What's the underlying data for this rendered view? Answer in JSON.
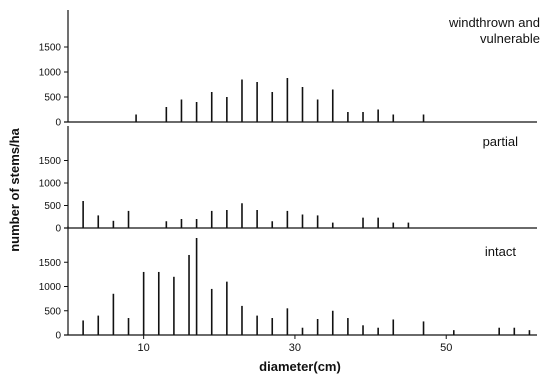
{
  "chart_data": {
    "type": "bar",
    "ylabel": "number of stems/ha",
    "xlabel": "diameter(cm)",
    "xlim": [
      0,
      62
    ],
    "xticks": [
      10,
      30,
      50
    ],
    "yticks": [
      0,
      500,
      1000,
      1500
    ],
    "grid": false,
    "panels": [
      {
        "title_lines": [
          "windthrown and",
          "vulnerable"
        ],
        "ylim": [
          0,
          2000
        ],
        "series": [
          {
            "x": [
              9,
              13,
              15,
              17,
              19,
              21,
              23,
              25,
              27,
              29,
              31,
              33,
              35,
              37,
              39,
              41,
              43,
              47
            ],
            "values": [
              150,
              300,
              450,
              400,
              600,
              500,
              850,
              800,
              600,
              880,
              700,
              450,
              650,
              200,
              200,
              250,
              150,
              150
            ]
          }
        ]
      },
      {
        "title_lines": [
          "partial"
        ],
        "ylim": [
          0,
          2000
        ],
        "series": [
          {
            "x": [
              2,
              4,
              6,
              8,
              13,
              15,
              17,
              19,
              21,
              23,
              25,
              27,
              29,
              31,
              33,
              35,
              39,
              41,
              43,
              45
            ],
            "values": [
              600,
              280,
              160,
              380,
              150,
              200,
              200,
              380,
              400,
              550,
              400,
              150,
              380,
              300,
              280,
              120,
              230,
              230,
              120,
              120
            ]
          }
        ]
      },
      {
        "title_lines": [
          "intact"
        ],
        "ylim": [
          0,
          2000
        ],
        "series": [
          {
            "x": [
              2,
              4,
              6,
              8,
              10,
              12,
              14,
              16,
              17,
              19,
              21,
              23,
              25,
              27,
              29,
              31,
              33,
              35,
              37,
              39,
              41,
              43,
              47,
              51,
              57,
              59,
              61
            ],
            "values": [
              300,
              400,
              850,
              350,
              1300,
              1300,
              1200,
              1650,
              2000,
              950,
              1100,
              600,
              400,
              350,
              550,
              150,
              330,
              500,
              350,
              200,
              150,
              320,
              280,
              100,
              150,
              150,
              100
            ]
          }
        ]
      }
    ]
  }
}
